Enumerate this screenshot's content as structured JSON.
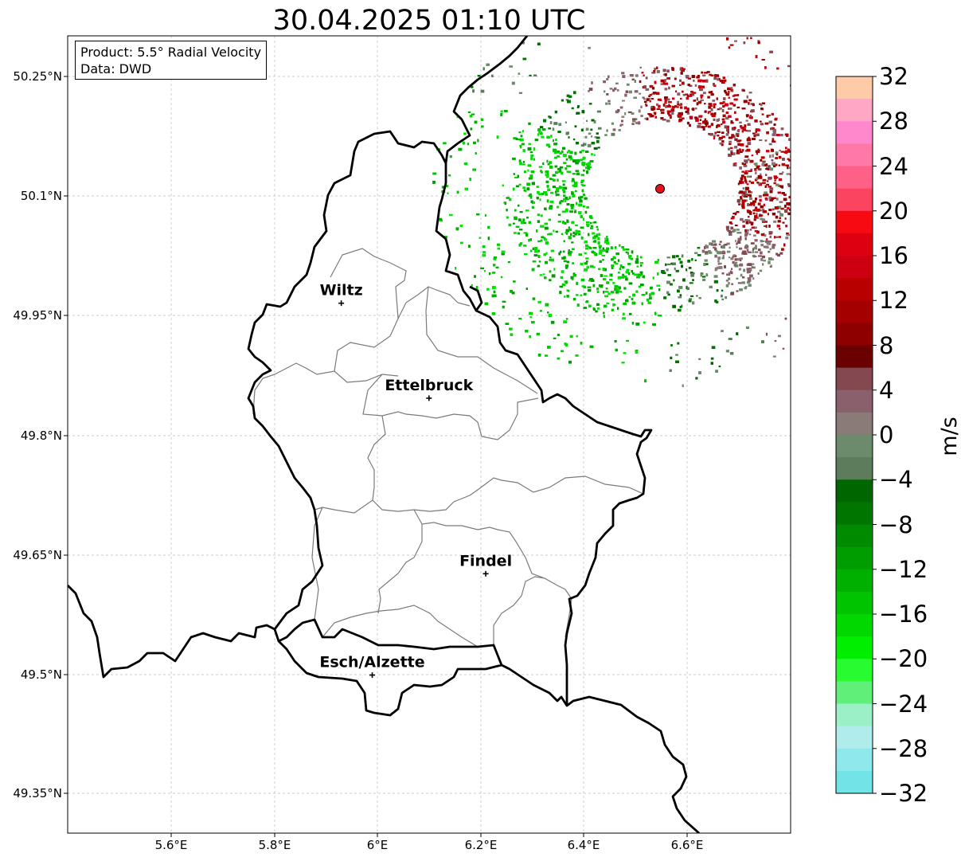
{
  "title": "30.04.2025 01:10 UTC",
  "info_box": {
    "product": "Product: 5.5° Radial Velocity",
    "data": "Data: DWD"
  },
  "lat_ticks": [
    "50.25°N",
    "50.1°N",
    "49.95°N",
    "49.8°N",
    "49.65°N",
    "49.5°N",
    "49.35°N"
  ],
  "lon_ticks": [
    "5.6°E",
    "5.8°E",
    "6°E",
    "6.2°E",
    "6.4°E",
    "6.6°E"
  ],
  "cities": [
    {
      "name": "Wiltz",
      "lon": 5.93,
      "lat": 49.966
    },
    {
      "name": "Ettelbruck",
      "lon": 6.1,
      "lat": 49.847
    },
    {
      "name": "Findel",
      "lon": 6.21,
      "lat": 49.627
    },
    {
      "name": "Esch/Alzette",
      "lon": 5.99,
      "lat": 49.5
    }
  ],
  "radar_site": {
    "lon": 6.548,
    "lat": 50.111,
    "color": "#e8101a"
  },
  "colorbar": {
    "label": "m/s",
    "ticks": [
      "32",
      "28",
      "24",
      "20",
      "16",
      "12",
      "8",
      "4",
      "0",
      "−4",
      "−8",
      "−12",
      "−16",
      "−20",
      "−24",
      "−28",
      "−32"
    ],
    "colors_top_to_bottom": [
      "#ffcaa8",
      "#ffa7c4",
      "#ff88cc",
      "#ff78a8",
      "#ff6088",
      "#fa4460",
      "#f70a12",
      "#dd0010",
      "#cc0010",
      "#b80000",
      "#a40000",
      "#8e0000",
      "#6b0000",
      "#844850",
      "#89606c",
      "#8a7a78",
      "#6c8a6c",
      "#5c7c5c",
      "#006600",
      "#007600",
      "#008a00",
      "#009d00",
      "#00b000",
      "#00c400",
      "#00d800",
      "#00ee00",
      "#28fc30",
      "#60f07a",
      "#9cf0c8",
      "#b0ecec",
      "#8ee8ec",
      "#72e4e8"
    ]
  },
  "colors": {
    "border": "#000000",
    "admin_lines": "#7a7a7a",
    "grid": "#bbbbbb"
  }
}
